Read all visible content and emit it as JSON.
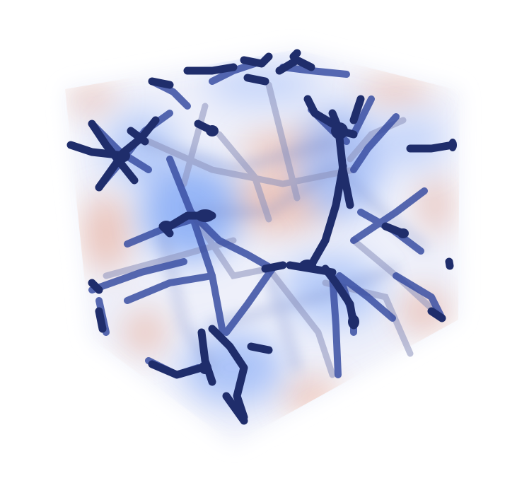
{
  "image": {
    "subject": "3d-volume-render",
    "colors": {
      "background": "#ffffff",
      "network_dark": "#1f2d6b",
      "network_mid": "#3a4fa3",
      "network_glow": "#6f9cf5",
      "field_cool": "#b9cdfa",
      "field_warm": "#e9a48c",
      "field_neutral": "#eef0fa"
    }
  }
}
